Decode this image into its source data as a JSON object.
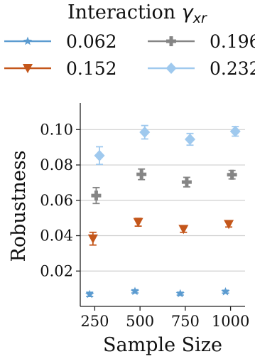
{
  "chart_data": {
    "type": "scatter",
    "xlabel": "Sample Size",
    "ylabel": "Robustness",
    "x_ticks": [
      250,
      500,
      750,
      1000
    ],
    "y_ticks": [
      0.02,
      0.04,
      0.06,
      0.08,
      0.1
    ],
    "y_tick_labels": [
      "0.02",
      "0.04",
      "0.06",
      "0.08",
      "0.10"
    ],
    "xlim": [
      170,
      1080
    ],
    "ylim": [
      0.0,
      0.115
    ],
    "grid": "horizontal",
    "legend": {
      "title_prefix": "Interaction ",
      "title_symbol": "γ",
      "title_subscript": "xr",
      "placement": "top"
    },
    "series": [
      {
        "name": "0.062",
        "color": "#5b9bd0",
        "marker": "star",
        "x": [
          222,
          472,
          722,
          972
        ],
        "y": [
          0.0068,
          0.0085,
          0.0072,
          0.0083
        ],
        "err": [
          0.0012,
          0.0009,
          0.0008,
          0.0008
        ]
      },
      {
        "name": "0.152",
        "color": "#c4561a",
        "marker": "triangle-down",
        "x": [
          240,
          490,
          740,
          990
        ],
        "y": [
          0.0383,
          0.0476,
          0.0437,
          0.0465
        ],
        "err": [
          0.0036,
          0.0022,
          0.0018,
          0.0016
        ]
      },
      {
        "name": "0.196",
        "color": "#858585",
        "marker": "plus",
        "x": [
          258,
          508,
          758,
          1008
        ],
        "y": [
          0.0627,
          0.0747,
          0.0703,
          0.0745
        ],
        "err": [
          0.0045,
          0.003,
          0.0027,
          0.0024
        ]
      },
      {
        "name": "0.232",
        "color": "#9fc9ee",
        "marker": "diamond",
        "x": [
          276,
          526,
          776,
          1026
        ],
        "y": [
          0.0853,
          0.0985,
          0.0945,
          0.099
        ],
        "err": [
          0.005,
          0.0038,
          0.0033,
          0.0027
        ]
      }
    ]
  }
}
